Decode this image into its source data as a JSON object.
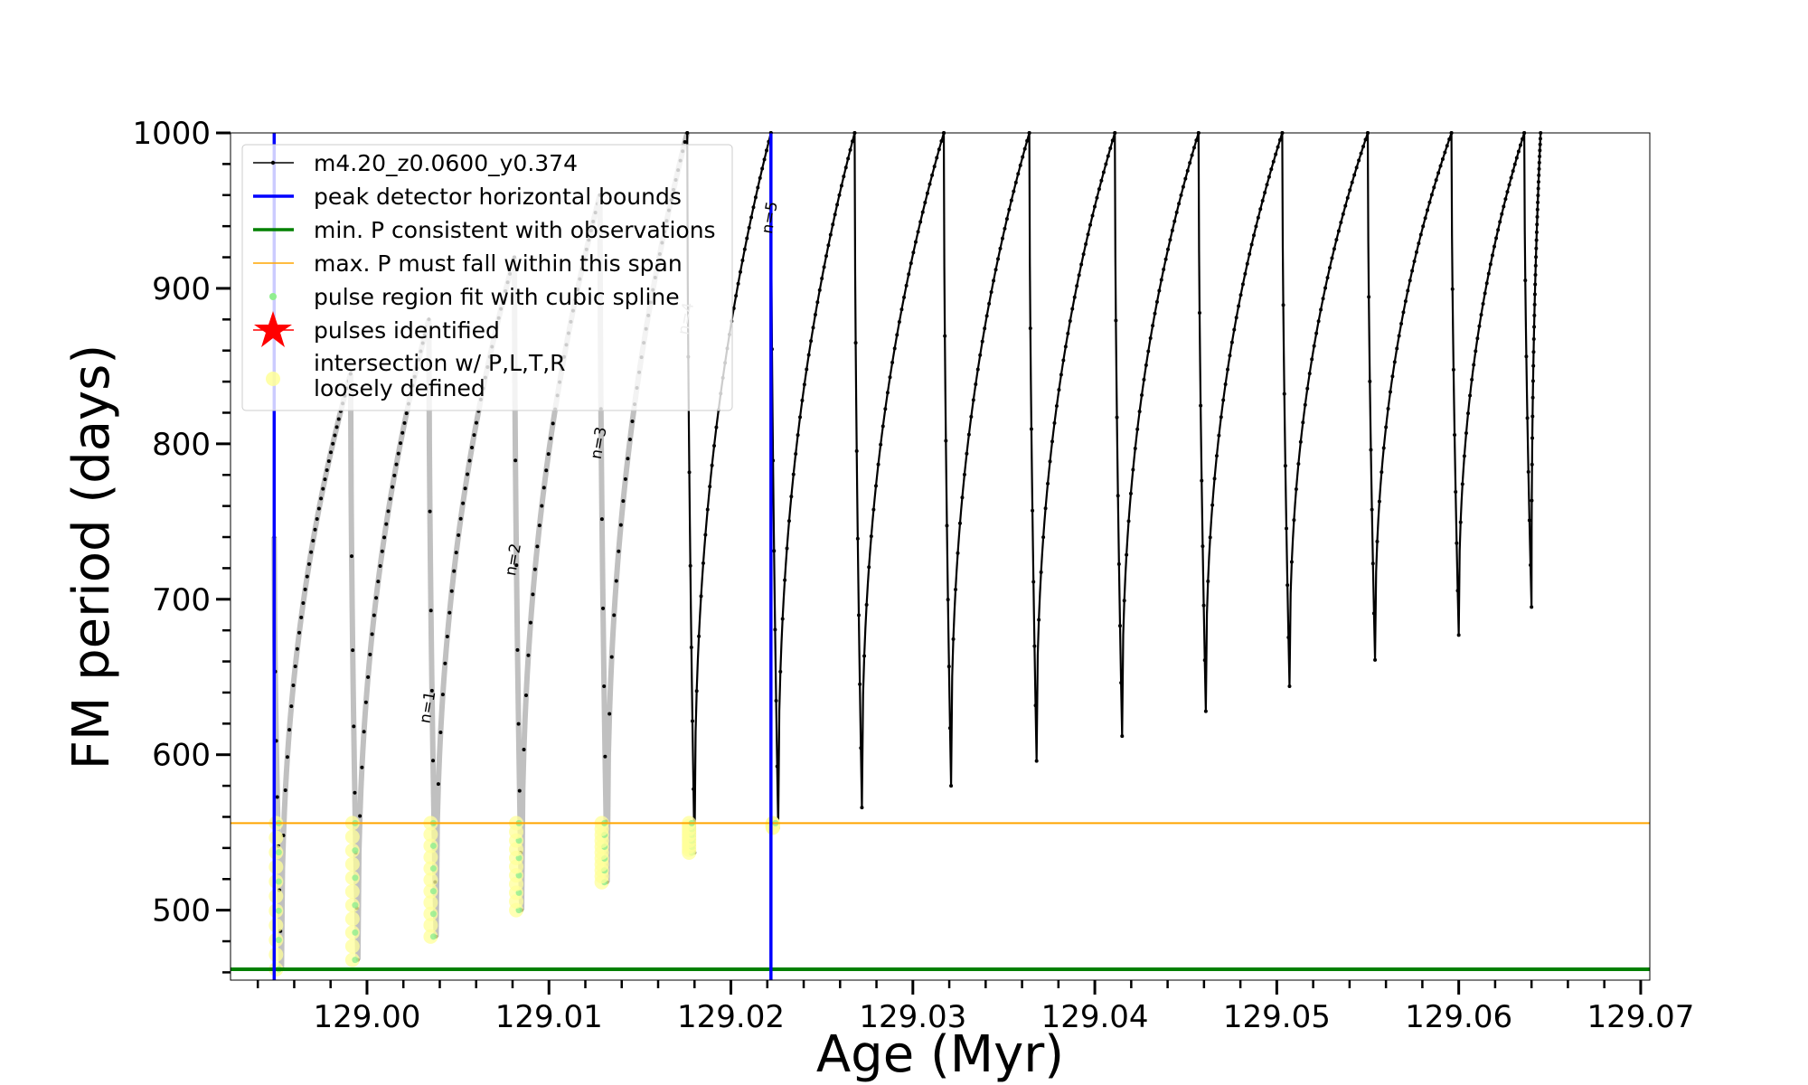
{
  "chart_data": {
    "type": "line",
    "xlabel": "Age (Myr)",
    "ylabel": "FM period (days)",
    "xlim": [
      128.9925,
      129.0705
    ],
    "ylim": [
      455,
      1000
    ],
    "xticks": [
      129.0,
      129.01,
      129.02,
      129.03,
      129.04,
      129.05,
      129.06,
      129.07
    ],
    "xtick_labels": [
      "129.00",
      "129.01",
      "129.02",
      "129.03",
      "129.04",
      "129.05",
      "129.06",
      "129.07"
    ],
    "yticks": [
      500,
      600,
      700,
      800,
      900,
      1000
    ],
    "ytick_labels": [
      "500",
      "600",
      "700",
      "800",
      "900",
      "1000"
    ],
    "grid": false,
    "legend_position": "top-left",
    "legend": [
      {
        "label": "m4.20_z0.0600_y0.374",
        "kind": "line-marker",
        "color": "#000000"
      },
      {
        "label": "peak detector horizontal bounds",
        "kind": "line",
        "color": "#0000ff"
      },
      {
        "label": "min. P consistent with observations",
        "kind": "line",
        "color": "#008000"
      },
      {
        "label": "max. P must fall within this span",
        "kind": "thin-line",
        "color": "#ffa500"
      },
      {
        "label": "pulse region fit with cubic spline",
        "kind": "dot",
        "color": "#90ee90"
      },
      {
        "label": "pulses identified",
        "kind": "star",
        "color": "#ff0000"
      },
      {
        "label": "intersection w/ P,L,T,R loosely defined",
        "kind": "circle",
        "color": "#ffff99"
      }
    ],
    "series_color": "#000000",
    "series": [
      {
        "name": "m4.20_z0.0600_y0.374",
        "pulses": [
          {
            "start": 128.9949,
            "end": 128.9991,
            "p_top": 740,
            "p_min": 462,
            "p_end": 845,
            "faded": true
          },
          {
            "start": 128.9991,
            "end": 129.0034,
            "p_top": 845,
            "p_min": 468,
            "p_end": 880,
            "faded": true
          },
          {
            "start": 129.0034,
            "end": 129.0081,
            "p_top": 880,
            "p_min": 483,
            "p_end": 920,
            "faded": true
          },
          {
            "start": 129.0081,
            "end": 129.0128,
            "p_top": 920,
            "p_min": 500,
            "p_end": 960,
            "faded": true
          },
          {
            "start": 129.0128,
            "end": 129.0176,
            "p_top": 960,
            "p_min": 518,
            "p_end": 1000,
            "faded": true
          },
          {
            "start": 129.0176,
            "end": 129.0222,
            "p_top": 1000,
            "p_min": 537,
            "p_end": 1000,
            "faded": false
          },
          {
            "start": 129.0222,
            "end": 129.0268,
            "p_top": 1000,
            "p_min": 553,
            "p_end": 1000,
            "faded": false
          },
          {
            "start": 129.0268,
            "end": 129.0317,
            "p_top": 1000,
            "p_min": 566,
            "p_end": 1000,
            "faded": false
          },
          {
            "start": 129.0317,
            "end": 129.0364,
            "p_top": 1000,
            "p_min": 580,
            "p_end": 1000,
            "faded": false
          },
          {
            "start": 129.0364,
            "end": 129.0411,
            "p_top": 1000,
            "p_min": 596,
            "p_end": 1000,
            "faded": false
          },
          {
            "start": 129.0411,
            "end": 129.0457,
            "p_top": 1000,
            "p_min": 612,
            "p_end": 1000,
            "faded": false
          },
          {
            "start": 129.0457,
            "end": 129.0503,
            "p_top": 1000,
            "p_min": 628,
            "p_end": 1000,
            "faded": false
          },
          {
            "start": 129.0503,
            "end": 129.055,
            "p_top": 1000,
            "p_min": 644,
            "p_end": 1000,
            "faded": false
          },
          {
            "start": 129.055,
            "end": 129.0596,
            "p_top": 1000,
            "p_min": 661,
            "p_end": 1000,
            "faded": false
          },
          {
            "start": 129.0596,
            "end": 129.0636,
            "p_top": 1000,
            "p_min": 677,
            "p_end": 1000,
            "faded": false
          },
          {
            "start": 129.0636,
            "end": 129.0645,
            "p_top": 1000,
            "p_min": 695,
            "p_end": 1000,
            "faded": false
          }
        ]
      }
    ],
    "peak_detector_bounds": [
      128.9949,
      129.0222
    ],
    "min_period_observed": 462,
    "max_period_span": 556,
    "pulse_labels": [
      {
        "text": "n=1",
        "x": 129.0036,
        "y": 630,
        "faded": false
      },
      {
        "text": "n=2",
        "x": 129.0083,
        "y": 725,
        "faded": false
      },
      {
        "text": "n=3",
        "x": 129.013,
        "y": 800,
        "faded": false
      },
      {
        "text": "n=4",
        "x": 129.0178,
        "y": 880,
        "faded": true
      },
      {
        "text": "n=5",
        "x": 129.0224,
        "y": 945,
        "faded": false
      }
    ],
    "intersection_regions": [
      {
        "x": 128.995,
        "p_from": 462,
        "p_to": 556
      },
      {
        "x": 128.9992,
        "p_from": 468,
        "p_to": 556
      },
      {
        "x": 129.0035,
        "p_from": 483,
        "p_to": 556
      },
      {
        "x": 129.0082,
        "p_from": 500,
        "p_to": 556
      },
      {
        "x": 129.0129,
        "p_from": 518,
        "p_to": 556
      },
      {
        "x": 129.0177,
        "p_from": 537,
        "p_to": 556
      },
      {
        "x": 129.0223,
        "p_from": 553,
        "p_to": 556
      }
    ]
  }
}
